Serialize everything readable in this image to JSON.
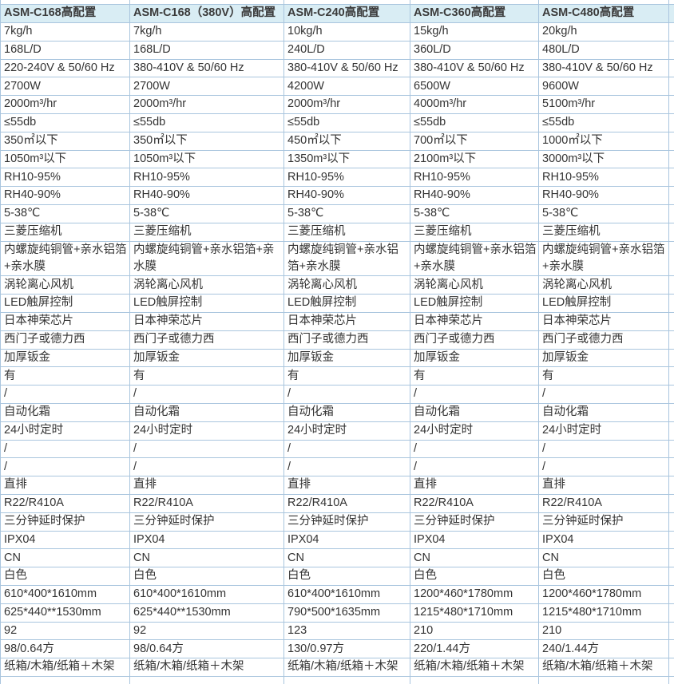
{
  "theme": {
    "header_bg": "#d9edf4",
    "grid_border": "#a9c5de",
    "header_text": "#3b3b3b",
    "cell_text": "#333333"
  },
  "table": {
    "headers": [
      "ASM-C168高配置",
      "ASM-C168（380V）高配置",
      "ASM-C240高配置",
      "ASM-C360高配置",
      "ASM-C480高配置"
    ],
    "rows": [
      [
        "7kg/h",
        "7kg/h",
        "10kg/h",
        "15kg/h",
        "20kg/h"
      ],
      [
        "168L/D",
        "168L/D",
        "240L/D",
        "360L/D",
        "480L/D"
      ],
      [
        "220-240V & 50/60 Hz",
        "380-410V & 50/60 Hz",
        "380-410V & 50/60 Hz",
        "380-410V & 50/60 Hz",
        "380-410V & 50/60 Hz"
      ],
      [
        "2700W",
        "2700W",
        "4200W",
        "6500W",
        "9600W"
      ],
      [
        "2000m³/hr",
        "2000m³/hr",
        "2000m³/hr",
        "4000m³/hr",
        "5100m³/hr"
      ],
      [
        "≤55db",
        "≤55db",
        "≤55db",
        "≤55db",
        "≤55db"
      ],
      [
        "350㎡以下",
        "350㎡以下",
        "450㎡以下",
        "700㎡以下",
        "1000㎡以下"
      ],
      [
        "1050m³以下",
        "1050m³以下",
        "1350m³以下",
        "2100m³以下",
        "3000m³以下"
      ],
      [
        "RH10-95%",
        "RH10-95%",
        "RH10-95%",
        "RH10-95%",
        "RH10-95%"
      ],
      [
        "RH40-90%",
        "RH40-90%",
        "RH40-90%",
        "RH40-90%",
        "RH40-90%"
      ],
      [
        "5-38℃",
        "5-38℃",
        "5-38℃",
        "5-38℃",
        "5-38℃"
      ],
      [
        "三菱压缩机",
        "三菱压缩机",
        "三菱压缩机",
        "三菱压缩机",
        "三菱压缩机"
      ],
      [
        "内螺旋纯铜管+亲水铝箔+亲水膜",
        "内螺旋纯铜管+亲水铝箔+亲水膜",
        "内螺旋纯铜管+亲水铝箔+亲水膜",
        "内螺旋纯铜管+亲水铝箔+亲水膜",
        "内螺旋纯铜管+亲水铝箔+亲水膜"
      ],
      [
        "涡轮离心风机",
        "涡轮离心风机",
        "涡轮离心风机",
        "涡轮离心风机",
        "涡轮离心风机"
      ],
      [
        "LED触屏控制",
        "LED触屏控制",
        "LED触屏控制",
        "LED触屏控制",
        "LED触屏控制"
      ],
      [
        "日本神荣芯片",
        "日本神荣芯片",
        "日本神荣芯片",
        "日本神荣芯片",
        "日本神荣芯片"
      ],
      [
        "西门子或德力西",
        "西门子或德力西",
        "西门子或德力西",
        "西门子或德力西",
        "西门子或德力西"
      ],
      [
        "加厚钣金",
        "加厚钣金",
        "加厚钣金",
        "加厚钣金",
        "加厚钣金"
      ],
      [
        "有",
        "有",
        "有",
        "有",
        "有"
      ],
      [
        "/",
        "/",
        "/",
        "/",
        "/"
      ],
      [
        "自动化霜",
        "自动化霜",
        "自动化霜",
        "自动化霜",
        "自动化霜"
      ],
      [
        "24小时定时",
        "24小时定时",
        "24小时定时",
        "24小时定时",
        "24小时定时"
      ],
      [
        "/",
        "/",
        "/",
        "/",
        "/"
      ],
      [
        "/",
        "/",
        "/",
        "/",
        "/"
      ],
      [
        "直排",
        "直排",
        "直排",
        "直排",
        "直排"
      ],
      [
        "R22/R410A",
        "R22/R410A",
        "R22/R410A",
        "R22/R410A",
        "R22/R410A"
      ],
      [
        "三分钟延时保护",
        "三分钟延时保护",
        "三分钟延时保护",
        "三分钟延时保护",
        "三分钟延时保护"
      ],
      [
        "IPX04",
        "IPX04",
        "IPX04",
        "IPX04",
        "IPX04"
      ],
      [
        "CN",
        "CN",
        "CN",
        "CN",
        "CN"
      ],
      [
        "白色",
        "白色",
        "白色",
        "白色",
        "白色"
      ],
      [
        "610*400*1610mm",
        "610*400*1610mm",
        "610*400*1610mm",
        "1200*460*1780mm",
        "1200*460*1780mm"
      ],
      [
        "625*440**1530mm",
        "625*440**1530mm",
        "790*500*1635mm",
        "1215*480*1710mm",
        "1215*480*1710mm"
      ],
      [
        "92",
        "92",
        "123",
        "210",
        "210"
      ],
      [
        "98/0.64方",
        "98/0.64方",
        "130/0.97方",
        "220/1.44方",
        "240/1.44方"
      ],
      [
        "纸箱/木箱/纸箱＋木架",
        "纸箱/木箱/纸箱＋木架",
        "纸箱/木箱/纸箱＋木架",
        "纸箱/木箱/纸箱＋木架",
        "纸箱/木箱/纸箱＋木架"
      ]
    ]
  }
}
